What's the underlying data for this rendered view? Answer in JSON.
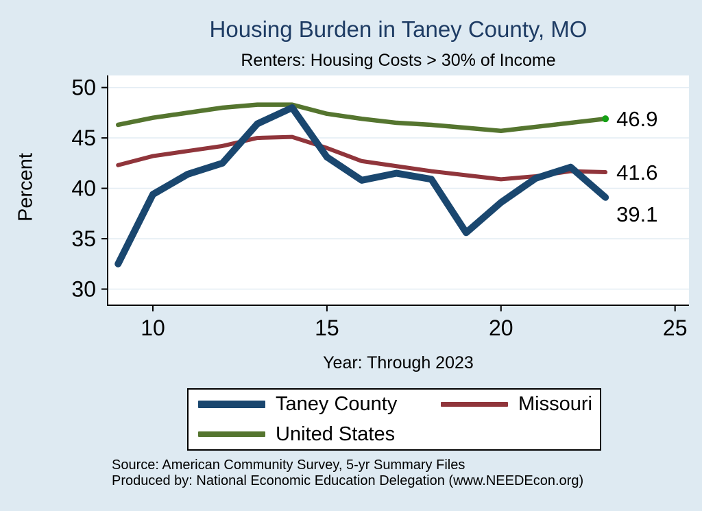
{
  "header": {
    "title": "Housing Burden in Taney County, MO",
    "subtitle": "Renters: Housing Costs > 30% of Income"
  },
  "chart_data": {
    "type": "line",
    "x": [
      9,
      10,
      11,
      12,
      13,
      14,
      15,
      16,
      17,
      18,
      19,
      20,
      21,
      22,
      23
    ],
    "series": [
      {
        "name": "United States",
        "color": "#55752f",
        "line_width": 6.5,
        "values": [
          46.3,
          47.0,
          47.5,
          48.0,
          48.3,
          48.3,
          47.4,
          46.9,
          46.5,
          46.3,
          46.0,
          45.7,
          46.1,
          46.5,
          46.9
        ],
        "end_label": "46.9",
        "end_label_dy": 0,
        "end_marker_color": "#16a016"
      },
      {
        "name": "Missouri",
        "color": "#90353b",
        "line_width": 6,
        "values": [
          42.3,
          43.2,
          43.7,
          44.2,
          45.0,
          45.1,
          44.0,
          42.7,
          42.2,
          41.7,
          41.3,
          40.9,
          41.2,
          41.7,
          41.6
        ],
        "end_label": "41.6",
        "end_label_dy": 0,
        "end_marker_color": null
      },
      {
        "name": "Taney County",
        "color": "#1a476f",
        "line_width": 10,
        "values": [
          32.5,
          39.4,
          41.4,
          42.5,
          46.4,
          48.0,
          43.1,
          40.8,
          41.5,
          40.9,
          35.6,
          38.6,
          41.0,
          42.1,
          39.1
        ],
        "end_label": "39.1",
        "end_label_dy": 24,
        "end_marker_color": null
      }
    ],
    "title": "Housing Burden in Taney County, MO",
    "subtitle": "Renters: Housing Costs > 30% of Income",
    "xlabel": "Year: Through 2023",
    "ylabel": "Percent",
    "x_ticks": [
      10,
      15,
      20,
      25
    ],
    "y_ticks": [
      30,
      35,
      40,
      45,
      50
    ],
    "x_domain": [
      8.7,
      25.4
    ],
    "y_domain": [
      28.4,
      51.2
    ],
    "grid": "horizontal-only",
    "legend_position": "bottom"
  },
  "legend": {
    "items": [
      {
        "label": "Taney County",
        "color": "#1a476f",
        "thickness": 11
      },
      {
        "label": "Missouri",
        "color": "#90353b",
        "thickness": 7
      },
      {
        "label": "United States",
        "color": "#55752f",
        "thickness": 8
      }
    ]
  },
  "source": {
    "line1": "Source: American Community Survey, 5-yr Summary Files",
    "line2": "Produced by: National Economic Education Delegation (www.NEEDEcon.org)"
  },
  "colors": {
    "page_background": "#deeaf2",
    "plot_background": "#ffffff",
    "gridline": "#e4edf4",
    "axis": "#000000",
    "title_text": "#1e3c64",
    "body_text": "#000000"
  }
}
